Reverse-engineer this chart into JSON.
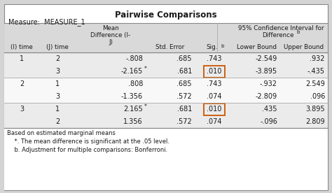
{
  "title": "Pairwise Comparisons",
  "measure_label": "Measure:  MEASURE_1",
  "rows": [
    [
      "1",
      "2",
      "-.808",
      ".685",
      ".743",
      "-2.549",
      ".932",
      false
    ],
    [
      "",
      "3",
      "-2.165*",
      ".681",
      ".010",
      "-3.895",
      "-.435",
      true
    ],
    [
      "2",
      "1",
      ".808",
      ".685",
      ".743",
      "-.932",
      "2.549",
      false
    ],
    [
      "",
      "3",
      "-1.356",
      ".572",
      ".074",
      "-2.809",
      ".096",
      false
    ],
    [
      "3",
      "1",
      "2.165*",
      ".681",
      ".010",
      ".435",
      "3.895",
      true
    ],
    [
      "",
      "2",
      "1.356",
      ".572",
      ".074",
      "-.096",
      "2.809",
      false
    ]
  ],
  "footnotes": [
    "Based on estimated marginal means",
    "    *. The mean difference is significant at the .05 level.",
    "    b. Adjustment for multiple comparisons: Bonferroni."
  ],
  "header_bg": "#d9d9d9",
  "row_bg_group1": "#ebebeb",
  "row_bg_group2": "#f8f8f8",
  "row_bg_group3": "#ebebeb",
  "border_color": "#888888",
  "sep_color": "#aaaaaa",
  "highlight_box_color": "#cc5500",
  "text_color": "#1a1a1a",
  "bg_color": "#d4d4d4",
  "footnote_bg": "#ffffff"
}
